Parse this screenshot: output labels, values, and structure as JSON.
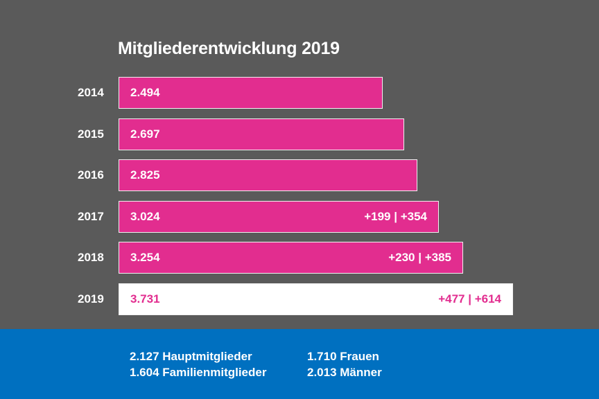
{
  "title": "Mitgliederentwicklung 2019",
  "colors": {
    "background": "#5a5a5a",
    "bar": "#e22d8f",
    "highlight_bar": "#ffffff",
    "footer": "#0070c0",
    "text": "#ffffff"
  },
  "chart_data": {
    "type": "bar",
    "orientation": "horizontal",
    "title": "Mitgliederentwicklung 2019",
    "categories": [
      "2014",
      "2015",
      "2016",
      "2017",
      "2018",
      "2019"
    ],
    "values": [
      2494,
      2697,
      2825,
      3024,
      3254,
      3731
    ],
    "value_labels": [
      "2.494",
      "2.697",
      "2.825",
      "3.024",
      "3.254",
      "3.731"
    ],
    "delta_labels": [
      "",
      "",
      "",
      "+199 | +354",
      "+230 | +385",
      "+477 | +614"
    ],
    "highlight": "2019",
    "xlabel": "",
    "ylabel": "",
    "grid": false,
    "legend": "none"
  },
  "footer": {
    "stats": [
      {
        "label": "2.127 Hauptmitglieder"
      },
      {
        "label": "1.604 Familienmitglieder"
      },
      {
        "label": "1.710 Frauen"
      },
      {
        "label": "2.013 Männer"
      }
    ]
  }
}
